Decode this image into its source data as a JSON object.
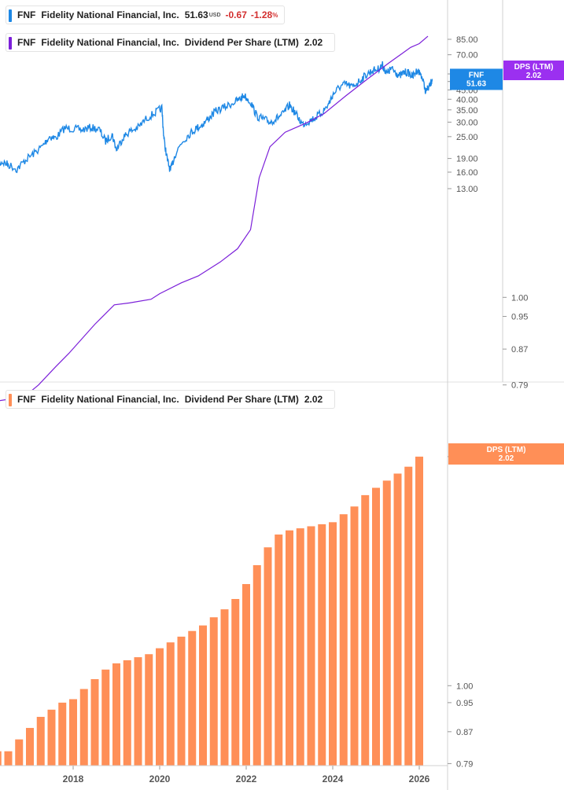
{
  "legends": {
    "price": {
      "ticker": "FNF",
      "name": "Fidelity National Financial, Inc.",
      "price": "51.63",
      "currency": "USD",
      "change": "-0.67",
      "change_pct": "-1.28",
      "pct_sign": "%"
    },
    "dps_top": {
      "ticker": "FNF",
      "name": "Fidelity National Financial, Inc.",
      "metric": "Dividend Per Share (LTM)",
      "value": "2.02"
    },
    "dps_bottom": {
      "ticker": "FNF",
      "name": "Fidelity National Financial, Inc.",
      "metric": "Dividend Per Share (LTM)",
      "value": "2.02"
    }
  },
  "badges": {
    "price": {
      "line1": "FNF",
      "line2": "51.63"
    },
    "dps_top": {
      "line1": "DPS (LTM)",
      "line2": "2.02"
    },
    "dps_bottom": {
      "line1": "DPS (LTM)",
      "line2": "2.02"
    }
  },
  "colors": {
    "price_line": "#1e88e5",
    "dps_line": "#7b1fd9",
    "bars": "#ff8f57",
    "dps_badge": "#9b30f0",
    "bar_badge": "#ff8f57",
    "price_badge": "#1e88e5",
    "axis_text": "#555555",
    "grid": "#e0e0e0"
  },
  "chart_data": [
    {
      "type": "line",
      "scale": "log",
      "price_axis_ticks": [
        "85.00",
        "70.00",
        "55.00",
        "50.00",
        "45.00",
        "40.00",
        "35.00",
        "30.00",
        "25.00",
        "19.00",
        "16.00",
        "13.00"
      ],
      "dps_axis_ticks": [
        "1.00",
        "0.95",
        "0.87",
        "0.79"
      ],
      "series": [
        {
          "name": "FNF",
          "axis": "price",
          "points": [
            [
              2016.2,
              17.0
            ],
            [
              2016.35,
              18.2
            ],
            [
              2016.5,
              17.6
            ],
            [
              2016.7,
              16.6
            ],
            [
              2016.9,
              18.7
            ],
            [
              2017.1,
              20.3
            ],
            [
              2017.3,
              22.3
            ],
            [
              2017.45,
              25.0
            ],
            [
              2017.6,
              24.6
            ],
            [
              2017.8,
              27.8
            ],
            [
              2018.0,
              27.6
            ],
            [
              2018.2,
              27.2
            ],
            [
              2018.4,
              28.0
            ],
            [
              2018.6,
              27.4
            ],
            [
              2018.75,
              23.6
            ],
            [
              2018.9,
              25.7
            ],
            [
              2019.0,
              21.2
            ],
            [
              2019.15,
              24.7
            ],
            [
              2019.3,
              26.6
            ],
            [
              2019.5,
              28.0
            ],
            [
              2019.7,
              31.5
            ],
            [
              2019.9,
              33.8
            ],
            [
              2020.05,
              35.8
            ],
            [
              2020.1,
              24.0
            ],
            [
              2020.18,
              18.5
            ],
            [
              2020.25,
              16.2
            ],
            [
              2020.35,
              19.8
            ],
            [
              2020.5,
              23.2
            ],
            [
              2020.7,
              26.0
            ],
            [
              2020.85,
              27.8
            ],
            [
              2021.0,
              29.2
            ],
            [
              2021.15,
              31.8
            ],
            [
              2021.3,
              34.5
            ],
            [
              2021.5,
              36.2
            ],
            [
              2021.7,
              38.3
            ],
            [
              2021.85,
              40.0
            ],
            [
              2021.95,
              42.0
            ],
            [
              2022.1,
              38.7
            ],
            [
              2022.25,
              32.2
            ],
            [
              2022.4,
              31.2
            ],
            [
              2022.55,
              30.0
            ],
            [
              2022.7,
              31.4
            ],
            [
              2022.85,
              33.2
            ],
            [
              2023.0,
              37.2
            ],
            [
              2023.15,
              33.2
            ],
            [
              2023.3,
              29.2
            ],
            [
              2023.45,
              30.4
            ],
            [
              2023.6,
              31.8
            ],
            [
              2023.75,
              33.8
            ],
            [
              2023.9,
              37.5
            ],
            [
              2024.0,
              42.3
            ],
            [
              2024.15,
              46.5
            ],
            [
              2024.3,
              48.5
            ],
            [
              2024.45,
              46.6
            ],
            [
              2024.6,
              50.0
            ],
            [
              2024.75,
              53.8
            ],
            [
              2024.9,
              57.2
            ],
            [
              2025.05,
              58.5
            ],
            [
              2025.15,
              61.5
            ],
            [
              2025.25,
              55.2
            ],
            [
              2025.35,
              58.8
            ],
            [
              2025.45,
              56.5
            ],
            [
              2025.55,
              53.5
            ],
            [
              2025.65,
              56.2
            ],
            [
              2025.75,
              55.8
            ],
            [
              2025.85,
              53.2
            ],
            [
              2025.95,
              57.8
            ],
            [
              2026.05,
              54.2
            ],
            [
              2026.15,
              44.0
            ],
            [
              2026.25,
              47.5
            ],
            [
              2026.3,
              51.63
            ]
          ]
        },
        {
          "name": "Dividend Per Share (LTM)",
          "axis": "dps",
          "points": [
            [
              2016.2,
              0.756
            ],
            [
              2016.5,
              0.76
            ],
            [
              2016.8,
              0.76
            ],
            [
              2017.2,
              0.79
            ],
            [
              2017.6,
              0.83
            ],
            [
              2017.9,
              0.86
            ],
            [
              2018.5,
              0.93
            ],
            [
              2018.95,
              0.98
            ],
            [
              2019.3,
              0.985
            ],
            [
              2019.8,
              0.995
            ],
            [
              2020.0,
              1.01
            ],
            [
              2020.5,
              1.04
            ],
            [
              2020.9,
              1.06
            ],
            [
              2021.4,
              1.1
            ],
            [
              2021.8,
              1.14
            ],
            [
              2022.1,
              1.2
            ],
            [
              2022.3,
              1.38
            ],
            [
              2022.55,
              1.5
            ],
            [
              2022.9,
              1.56
            ],
            [
              2023.4,
              1.6
            ],
            [
              2023.8,
              1.64
            ],
            [
              2024.3,
              1.72
            ],
            [
              2024.8,
              1.8
            ],
            [
              2025.3,
              1.88
            ],
            [
              2025.8,
              1.96
            ],
            [
              2026.0,
              1.98
            ],
            [
              2026.2,
              2.02
            ]
          ]
        }
      ]
    },
    {
      "type": "bar",
      "scale": "log",
      "x_ticks": [
        "2018",
        "2020",
        "2022",
        "2024",
        "2026"
      ],
      "y_axis_ticks": [
        "2.00",
        "1.00",
        "0.95",
        "0.87",
        "0.79"
      ],
      "series": [
        {
          "name": "Dividend Per Share (LTM)",
          "x": [
            2016.25,
            2016.5,
            2016.75,
            2017.0,
            2017.25,
            2017.5,
            2017.75,
            2018.0,
            2018.25,
            2018.5,
            2018.75,
            2019.0,
            2019.25,
            2019.5,
            2019.75,
            2020.0,
            2020.25,
            2020.5,
            2020.75,
            2021.0,
            2021.25,
            2021.5,
            2021.75,
            2022.0,
            2022.25,
            2022.5,
            2022.75,
            2023.0,
            2023.25,
            2023.5,
            2023.75,
            2024.0,
            2024.25,
            2024.5,
            2024.75,
            2025.0,
            2025.25,
            2025.5,
            2025.75,
            2026.0
          ],
          "values": [
            0.82,
            0.82,
            0.85,
            0.88,
            0.91,
            0.93,
            0.95,
            0.96,
            0.99,
            1.02,
            1.05,
            1.07,
            1.08,
            1.09,
            1.1,
            1.12,
            1.14,
            1.16,
            1.18,
            1.2,
            1.23,
            1.26,
            1.3,
            1.36,
            1.44,
            1.52,
            1.58,
            1.6,
            1.61,
            1.62,
            1.63,
            1.64,
            1.68,
            1.72,
            1.78,
            1.82,
            1.86,
            1.9,
            1.94,
            2.0
          ]
        }
      ]
    }
  ]
}
